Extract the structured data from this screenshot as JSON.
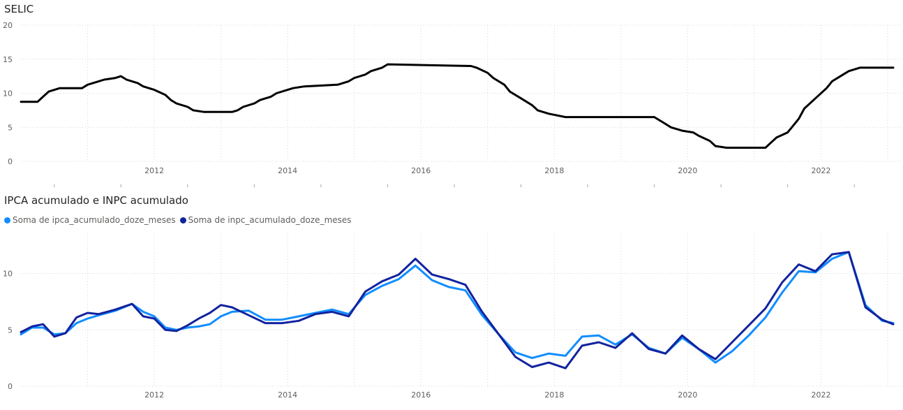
{
  "colors": {
    "selic": "#000000",
    "ipca": "#118dff",
    "inpc": "#12239e"
  },
  "chart_data": [
    {
      "type": "line",
      "title": "SELIC",
      "xlabel": "",
      "ylabel": "",
      "x_ticks": [
        "2012",
        "2014",
        "2016",
        "2018",
        "2020",
        "2022"
      ],
      "y_ticks": [
        "0",
        "5",
        "10",
        "15",
        "20"
      ],
      "ylim": [
        0,
        20
      ],
      "xlim": [
        "2010-01",
        "2023-02"
      ],
      "grid": true,
      "series": [
        {
          "points": [
            [
              "2010-01",
              8.75
            ],
            [
              "2010-04",
              8.75
            ],
            [
              "2010-05",
              9.5
            ],
            [
              "2010-06",
              10.25
            ],
            [
              "2010-08",
              10.75
            ],
            [
              "2010-12",
              10.75
            ],
            [
              "2011-01",
              11.25
            ],
            [
              "2011-03",
              11.75
            ],
            [
              "2011-04",
              12.0
            ],
            [
              "2011-06",
              12.25
            ],
            [
              "2011-07",
              12.5
            ],
            [
              "2011-08",
              12.0
            ],
            [
              "2011-10",
              11.5
            ],
            [
              "2011-11",
              11.0
            ],
            [
              "2012-01",
              10.5
            ],
            [
              "2012-03",
              9.75
            ],
            [
              "2012-04",
              9.0
            ],
            [
              "2012-05",
              8.5
            ],
            [
              "2012-07",
              8.0
            ],
            [
              "2012-08",
              7.5
            ],
            [
              "2012-10",
              7.25
            ],
            [
              "2013-03",
              7.25
            ],
            [
              "2013-04",
              7.5
            ],
            [
              "2013-05",
              8.0
            ],
            [
              "2013-07",
              8.5
            ],
            [
              "2013-08",
              9.0
            ],
            [
              "2013-10",
              9.5
            ],
            [
              "2013-11",
              10.0
            ],
            [
              "2014-01",
              10.5
            ],
            [
              "2014-02",
              10.75
            ],
            [
              "2014-04",
              11.0
            ],
            [
              "2014-10",
              11.25
            ],
            [
              "2014-12",
              11.75
            ],
            [
              "2015-01",
              12.25
            ],
            [
              "2015-03",
              12.75
            ],
            [
              "2015-04",
              13.25
            ],
            [
              "2015-06",
              13.75
            ],
            [
              "2015-07",
              14.25
            ],
            [
              "2016-10",
              14.0
            ],
            [
              "2016-11",
              13.75
            ],
            [
              "2017-01",
              13.0
            ],
            [
              "2017-02",
              12.25
            ],
            [
              "2017-04",
              11.25
            ],
            [
              "2017-05",
              10.25
            ],
            [
              "2017-07",
              9.25
            ],
            [
              "2017-09",
              8.25
            ],
            [
              "2017-10",
              7.5
            ],
            [
              "2017-12",
              7.0
            ],
            [
              "2018-03",
              6.5
            ],
            [
              "2019-07",
              6.5
            ],
            [
              "2019-08",
              6.0
            ],
            [
              "2019-09",
              5.5
            ],
            [
              "2019-10",
              5.0
            ],
            [
              "2019-12",
              4.5
            ],
            [
              "2020-02",
              4.25
            ],
            [
              "2020-03",
              3.75
            ],
            [
              "2020-05",
              3.0
            ],
            [
              "2020-06",
              2.25
            ],
            [
              "2020-08",
              2.0
            ],
            [
              "2021-03",
              2.0
            ],
            [
              "2021-04",
              2.75
            ],
            [
              "2021-05",
              3.5
            ],
            [
              "2021-07",
              4.25
            ],
            [
              "2021-08",
              5.25
            ],
            [
              "2021-09",
              6.25
            ],
            [
              "2021-10",
              7.75
            ],
            [
              "2021-12",
              9.25
            ],
            [
              "2022-02",
              10.75
            ],
            [
              "2022-03",
              11.75
            ],
            [
              "2022-05",
              12.75
            ],
            [
              "2022-06",
              13.25
            ],
            [
              "2022-08",
              13.75
            ],
            [
              "2023-02",
              13.75
            ]
          ]
        }
      ]
    },
    {
      "type": "line",
      "title": "IPCA acumulado e INPC acumulado",
      "xlabel": "",
      "ylabel": "",
      "x_ticks": [
        "2012",
        "2014",
        "2016",
        "2018",
        "2020",
        "2022"
      ],
      "y_ticks": [
        "0",
        "5",
        "10"
      ],
      "ylim": [
        0,
        13.5
      ],
      "xlim": [
        "2010-01",
        "2023-02"
      ],
      "grid": true,
      "legend": "top-left",
      "series": [
        {
          "name": "Soma de ipca_acumulado_doze_meses",
          "points": [
            [
              "2010-01",
              4.6
            ],
            [
              "2010-03",
              5.2
            ],
            [
              "2010-05",
              5.2
            ],
            [
              "2010-07",
              4.6
            ],
            [
              "2010-09",
              4.7
            ],
            [
              "2010-11",
              5.6
            ],
            [
              "2011-01",
              6.0
            ],
            [
              "2011-03",
              6.3
            ],
            [
              "2011-06",
              6.7
            ],
            [
              "2011-09",
              7.3
            ],
            [
              "2011-11",
              6.6
            ],
            [
              "2012-01",
              6.2
            ],
            [
              "2012-03",
              5.2
            ],
            [
              "2012-05",
              5.0
            ],
            [
              "2012-07",
              5.2
            ],
            [
              "2012-09",
              5.3
            ],
            [
              "2012-11",
              5.5
            ],
            [
              "2013-01",
              6.2
            ],
            [
              "2013-03",
              6.6
            ],
            [
              "2013-06",
              6.7
            ],
            [
              "2013-09",
              5.9
            ],
            [
              "2013-12",
              5.9
            ],
            [
              "2014-03",
              6.2
            ],
            [
              "2014-06",
              6.5
            ],
            [
              "2014-09",
              6.8
            ],
            [
              "2014-12",
              6.4
            ],
            [
              "2015-03",
              8.1
            ],
            [
              "2015-06",
              8.9
            ],
            [
              "2015-09",
              9.5
            ],
            [
              "2015-12",
              10.7
            ],
            [
              "2016-03",
              9.4
            ],
            [
              "2016-06",
              8.8
            ],
            [
              "2016-09",
              8.5
            ],
            [
              "2016-12",
              6.3
            ],
            [
              "2017-03",
              4.6
            ],
            [
              "2017-06",
              3.0
            ],
            [
              "2017-09",
              2.5
            ],
            [
              "2017-12",
              2.9
            ],
            [
              "2018-03",
              2.7
            ],
            [
              "2018-06",
              4.4
            ],
            [
              "2018-09",
              4.5
            ],
            [
              "2018-12",
              3.7
            ],
            [
              "2019-03",
              4.6
            ],
            [
              "2019-06",
              3.4
            ],
            [
              "2019-09",
              2.9
            ],
            [
              "2019-12",
              4.3
            ],
            [
              "2020-03",
              3.3
            ],
            [
              "2020-06",
              2.1
            ],
            [
              "2020-09",
              3.1
            ],
            [
              "2020-12",
              4.5
            ],
            [
              "2021-03",
              6.1
            ],
            [
              "2021-06",
              8.3
            ],
            [
              "2021-09",
              10.2
            ],
            [
              "2021-12",
              10.1
            ],
            [
              "2022-03",
              11.3
            ],
            [
              "2022-06",
              11.9
            ],
            [
              "2022-09",
              7.2
            ],
            [
              "2022-12",
              5.8
            ],
            [
              "2023-02",
              5.6
            ]
          ]
        },
        {
          "name": "Soma de inpc_acumulado_doze_meses",
          "points": [
            [
              "2010-01",
              4.8
            ],
            [
              "2010-03",
              5.3
            ],
            [
              "2010-05",
              5.5
            ],
            [
              "2010-07",
              4.4
            ],
            [
              "2010-09",
              4.7
            ],
            [
              "2010-11",
              6.1
            ],
            [
              "2011-01",
              6.5
            ],
            [
              "2011-03",
              6.4
            ],
            [
              "2011-06",
              6.8
            ],
            [
              "2011-09",
              7.3
            ],
            [
              "2011-11",
              6.2
            ],
            [
              "2012-01",
              6.0
            ],
            [
              "2012-03",
              5.0
            ],
            [
              "2012-05",
              4.9
            ],
            [
              "2012-07",
              5.4
            ],
            [
              "2012-09",
              6.0
            ],
            [
              "2012-11",
              6.5
            ],
            [
              "2013-01",
              7.2
            ],
            [
              "2013-03",
              7.0
            ],
            [
              "2013-06",
              6.3
            ],
            [
              "2013-09",
              5.6
            ],
            [
              "2013-12",
              5.6
            ],
            [
              "2014-03",
              5.8
            ],
            [
              "2014-06",
              6.4
            ],
            [
              "2014-09",
              6.6
            ],
            [
              "2014-12",
              6.2
            ],
            [
              "2015-03",
              8.4
            ],
            [
              "2015-06",
              9.3
            ],
            [
              "2015-09",
              9.9
            ],
            [
              "2015-12",
              11.3
            ],
            [
              "2016-03",
              9.9
            ],
            [
              "2016-06",
              9.5
            ],
            [
              "2016-09",
              9.0
            ],
            [
              "2016-12",
              6.6
            ],
            [
              "2017-03",
              4.6
            ],
            [
              "2017-06",
              2.6
            ],
            [
              "2017-09",
              1.7
            ],
            [
              "2017-12",
              2.1
            ],
            [
              "2018-03",
              1.6
            ],
            [
              "2018-06",
              3.6
            ],
            [
              "2018-09",
              3.9
            ],
            [
              "2018-12",
              3.4
            ],
            [
              "2019-03",
              4.7
            ],
            [
              "2019-06",
              3.3
            ],
            [
              "2019-09",
              2.9
            ],
            [
              "2019-12",
              4.5
            ],
            [
              "2020-03",
              3.3
            ],
            [
              "2020-06",
              2.4
            ],
            [
              "2020-09",
              3.9
            ],
            [
              "2020-12",
              5.4
            ],
            [
              "2021-03",
              6.9
            ],
            [
              "2021-06",
              9.2
            ],
            [
              "2021-09",
              10.8
            ],
            [
              "2021-12",
              10.2
            ],
            [
              "2022-03",
              11.7
            ],
            [
              "2022-06",
              11.9
            ],
            [
              "2022-09",
              7.0
            ],
            [
              "2022-12",
              5.9
            ],
            [
              "2023-02",
              5.5
            ]
          ]
        }
      ]
    }
  ]
}
